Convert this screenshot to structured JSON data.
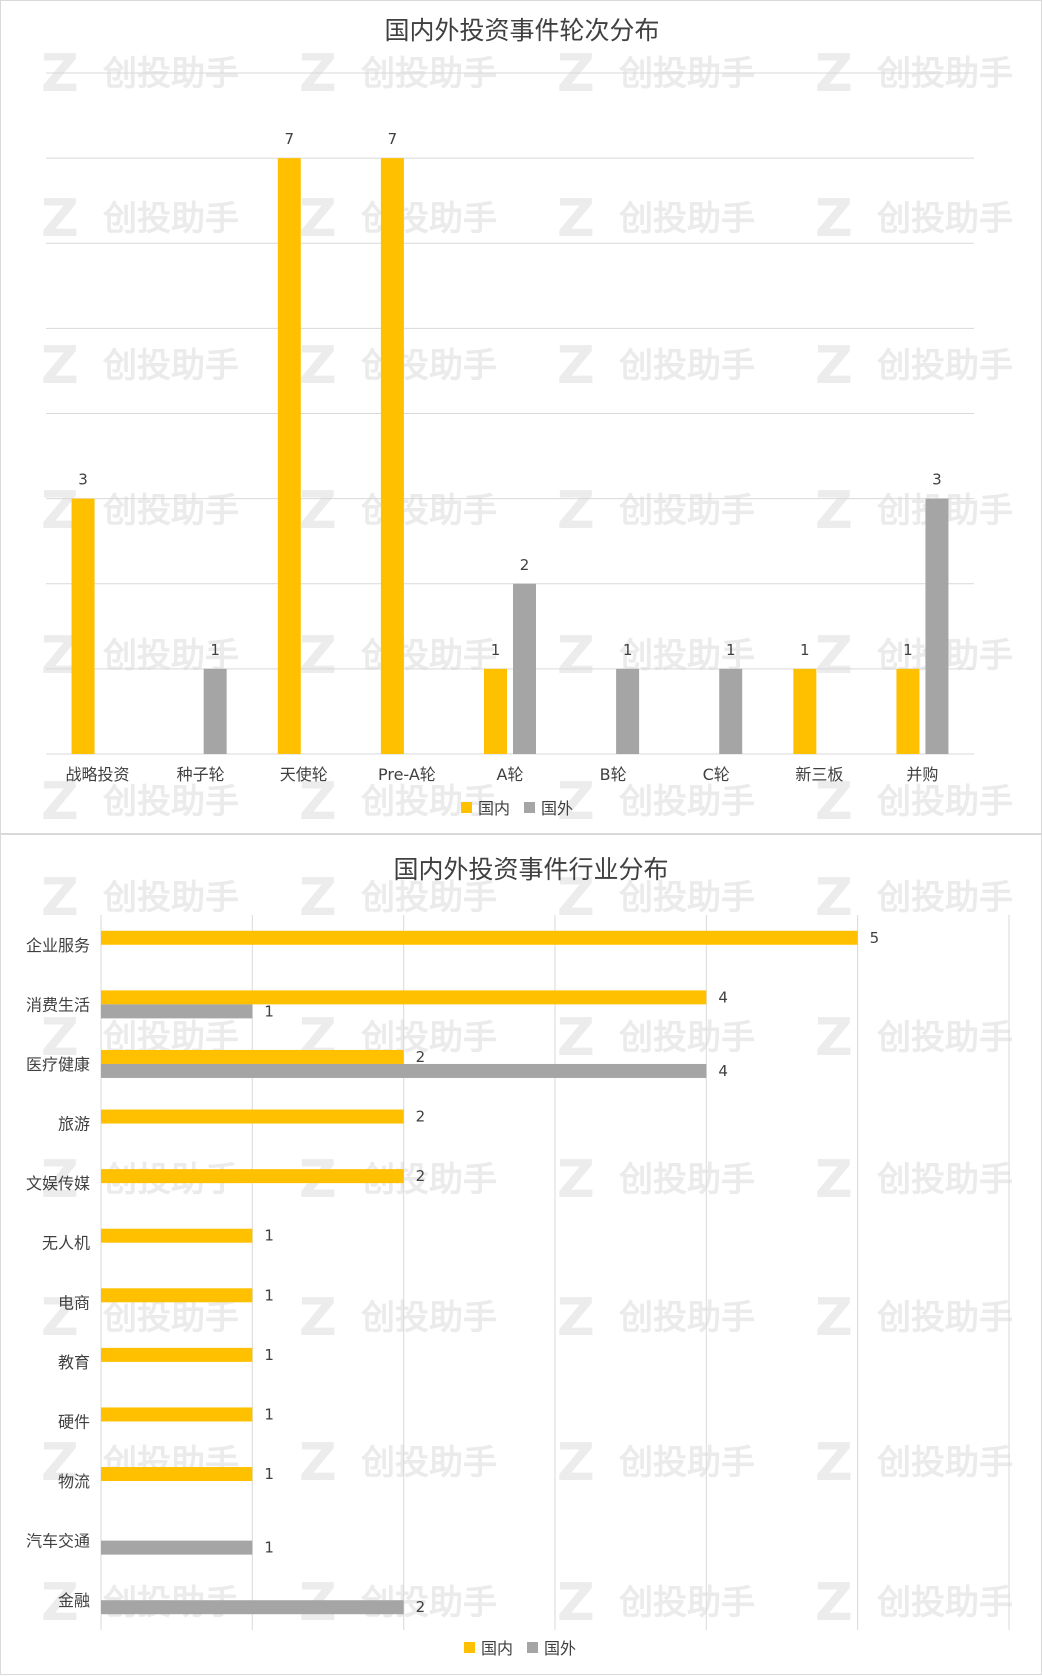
{
  "watermark": {
    "text": "创投助手",
    "logo": "Z"
  },
  "colors": {
    "domestic": "#FFC000",
    "foreign": "#A5A5A5",
    "grid": "#D9D9D9"
  },
  "chart_data": [
    {
      "type": "bar",
      "orientation": "vertical",
      "title": "国内外投资事件轮次分布",
      "categories": [
        "战略投资",
        "种子轮",
        "天使轮",
        "Pre-A轮",
        "A轮",
        "B轮",
        "C轮",
        "新三板",
        "并购"
      ],
      "series": [
        {
          "name": "国内",
          "values": [
            3,
            null,
            7,
            7,
            1,
            null,
            null,
            1,
            1
          ]
        },
        {
          "name": "国外",
          "values": [
            null,
            1,
            null,
            null,
            2,
            1,
            1,
            null,
            3
          ]
        }
      ],
      "ylim": [
        0,
        8
      ],
      "grid": true,
      "legend": "bottom"
    },
    {
      "type": "bar",
      "orientation": "horizontal",
      "title": "国内外投资事件行业分布",
      "categories": [
        "企业服务",
        "消费生活",
        "医疗健康",
        "旅游",
        "文娱传媒",
        "无人机",
        "电商",
        "教育",
        "硬件",
        "物流",
        "汽车交通",
        "金融"
      ],
      "series": [
        {
          "name": "国内",
          "values": [
            5,
            4,
            2,
            2,
            2,
            1,
            1,
            1,
            1,
            1,
            null,
            null
          ]
        },
        {
          "name": "国外",
          "values": [
            null,
            1,
            4,
            null,
            null,
            null,
            null,
            null,
            null,
            null,
            1,
            2
          ]
        }
      ],
      "xlim": [
        0,
        6
      ],
      "grid": true,
      "legend": "bottom"
    }
  ]
}
